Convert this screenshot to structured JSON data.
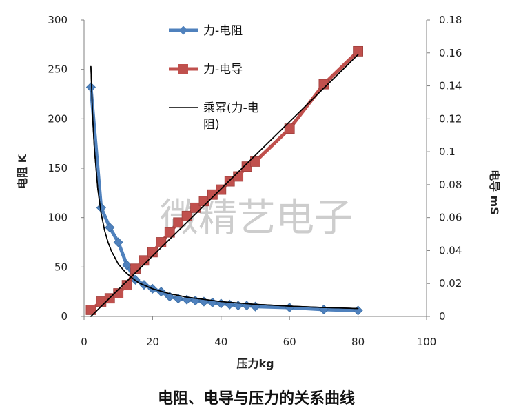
{
  "watermark": "微精艺电子",
  "caption": "电阻、电导与压力的关系曲线",
  "colors": {
    "resistance": "#4f81bd",
    "conductance": "#c0504d",
    "fit": "#000000",
    "axis": "#808080"
  },
  "chart_data": {
    "type": "line",
    "title": "",
    "xlabel": "压力kg",
    "ylabel": "电阻 K",
    "y2label": "电导 mS",
    "xlim": [
      0,
      100
    ],
    "ylim": [
      0,
      300
    ],
    "y2lim": [
      0,
      0.18
    ],
    "xticks": [
      "0",
      "20",
      "40",
      "60",
      "80",
      "100"
    ],
    "yticks": [
      "0",
      "50",
      "100",
      "150",
      "200",
      "250",
      "300"
    ],
    "y2ticks": [
      "0",
      "0.02",
      "0.04",
      "0.06",
      "0.08",
      "0.1",
      "0.12",
      "0.14",
      "0.16",
      "0.18"
    ],
    "grid": false,
    "legend_position": "top-center",
    "series": [
      {
        "name": "力-电阻",
        "axis": "left",
        "marker": "diamond",
        "x": [
          2,
          5,
          7.5,
          10,
          12.5,
          15,
          17.5,
          20,
          22.5,
          25,
          27.5,
          30,
          32.5,
          35,
          37.5,
          40,
          42.5,
          45,
          47.5,
          50,
          60,
          70,
          80
        ],
        "y": [
          232,
          110,
          90,
          75,
          52,
          37,
          32,
          28,
          25,
          20,
          18,
          17,
          16,
          15,
          14,
          13,
          12,
          11,
          11,
          10,
          9,
          7,
          6
        ]
      },
      {
        "name": "力-电导",
        "axis": "right",
        "marker": "square",
        "x": [
          2,
          5,
          7.5,
          10,
          12.5,
          15,
          17.5,
          20,
          22.5,
          25,
          27.5,
          30,
          32.5,
          35,
          37.5,
          40,
          42.5,
          45,
          47.5,
          50,
          60,
          70,
          80
        ],
        "y": [
          0.004,
          0.009,
          0.011,
          0.014,
          0.019,
          0.029,
          0.034,
          0.039,
          0.045,
          0.051,
          0.057,
          0.061,
          0.066,
          0.07,
          0.074,
          0.077,
          0.082,
          0.085,
          0.091,
          0.094,
          0.114,
          0.141,
          0.161
        ]
      },
      {
        "name": "乘幂(力-电阻)",
        "axis": "left",
        "marker": "none",
        "x": [
          2,
          2.5,
          3,
          4,
          5,
          6,
          7,
          8,
          10,
          12,
          14,
          16,
          20,
          25,
          30,
          40,
          50,
          60,
          70,
          80
        ],
        "y": [
          253,
          203,
          170,
          129,
          104,
          87,
          75,
          66,
          53,
          45,
          39,
          34,
          28,
          23,
          19.5,
          15,
          12.3,
          10.4,
          9.0,
          8.0
        ]
      },
      {
        "name": "",
        "axis": "right",
        "marker": "none",
        "x": [
          2,
          80
        ],
        "y": [
          0.0,
          0.159
        ]
      }
    ]
  }
}
